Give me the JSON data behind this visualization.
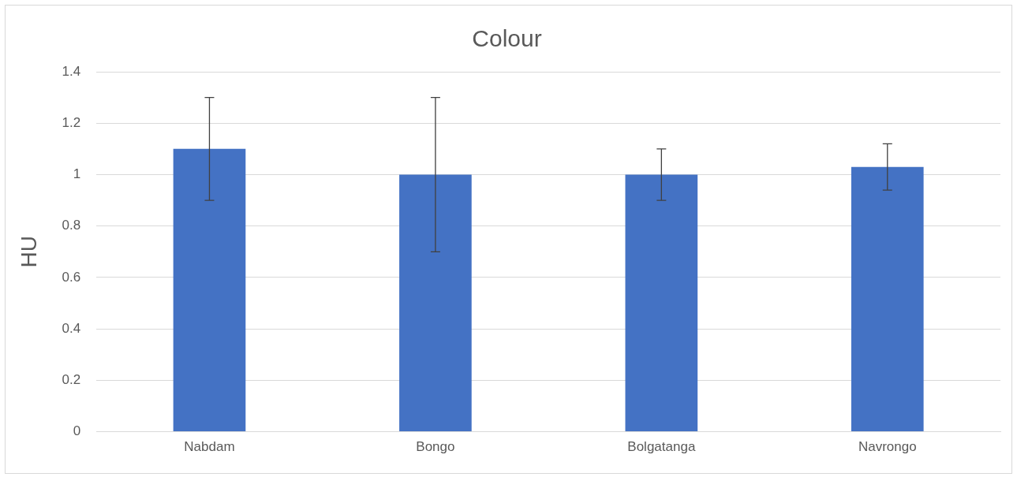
{
  "chart_data": {
    "type": "bar",
    "title": "Colour",
    "ylabel": "HU",
    "categories": [
      "Nabdam",
      "Bongo",
      "Bolgatanga",
      "Navrongo"
    ],
    "values": [
      1.1,
      1.0,
      1.0,
      1.03
    ],
    "errors": [
      0.2,
      0.3,
      0.1,
      0.09
    ],
    "color": "#4472c4",
    "ylim": [
      0,
      1.4
    ],
    "yticks": [
      0,
      0.2,
      0.4,
      0.6,
      0.8,
      1,
      1.2,
      1.4
    ],
    "grid": "y",
    "legend": false
  }
}
